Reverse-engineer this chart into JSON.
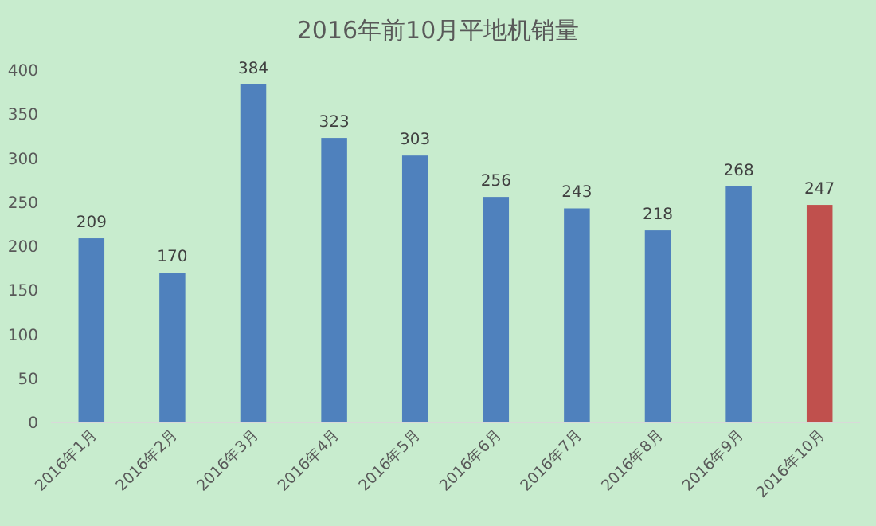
{
  "chart_data": {
    "type": "bar",
    "title": "2016年前10月平地机销量",
    "categories": [
      "2016年1月",
      "2016年2月",
      "2016年3月",
      "2016年4月",
      "2016年5月",
      "2016年6月",
      "2016年7月",
      "2016年8月",
      "2016年9月",
      "2016年10月"
    ],
    "values": [
      209,
      170,
      384,
      323,
      303,
      256,
      243,
      218,
      268,
      247
    ],
    "colors": [
      "#4f81bd",
      "#4f81bd",
      "#4f81bd",
      "#4f81bd",
      "#4f81bd",
      "#4f81bd",
      "#4f81bd",
      "#4f81bd",
      "#4f81bd",
      "#c0504d"
    ],
    "ylim": [
      0,
      400
    ],
    "yticks": [
      0,
      50,
      100,
      150,
      200,
      250,
      300,
      350,
      400
    ],
    "data_labels": true
  }
}
